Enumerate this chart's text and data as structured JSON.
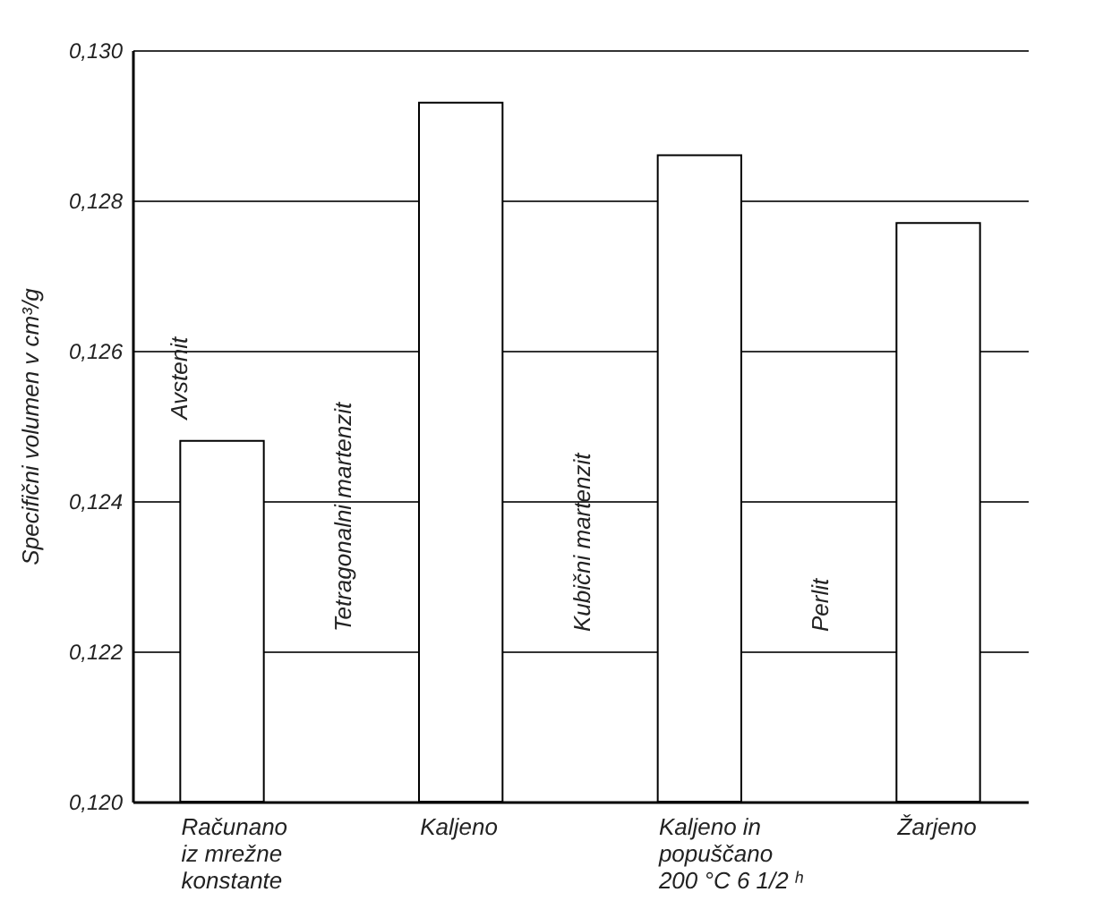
{
  "chart_data": {
    "type": "bar",
    "ylabel": "Specifični volumen v cm³/g",
    "categories": [
      "Računano\niz mrežne\nkonstante",
      "Kaljeno",
      "Kaljeno in\npopuščano\n200 °C  6 1/2 ʰ",
      "Žarjeno"
    ],
    "values": [
      0.1248,
      0.1293,
      0.1286,
      0.1277
    ],
    "color": "#ffffff",
    "ylim": [
      0.12,
      0.13
    ],
    "yticks": [
      {
        "value": 0.12,
        "label": "0,120"
      },
      {
        "value": 0.122,
        "label": "0,122"
      },
      {
        "value": 0.124,
        "label": "0,124"
      },
      {
        "value": 0.126,
        "label": "0,126"
      },
      {
        "value": 0.128,
        "label": "0,128"
      },
      {
        "value": 0.13,
        "label": "0,130"
      }
    ],
    "grid": "y",
    "annotations": [
      "Avstenit",
      "Tetragonalni martenzit",
      "Kubični martenzit",
      "Perlit"
    ]
  }
}
